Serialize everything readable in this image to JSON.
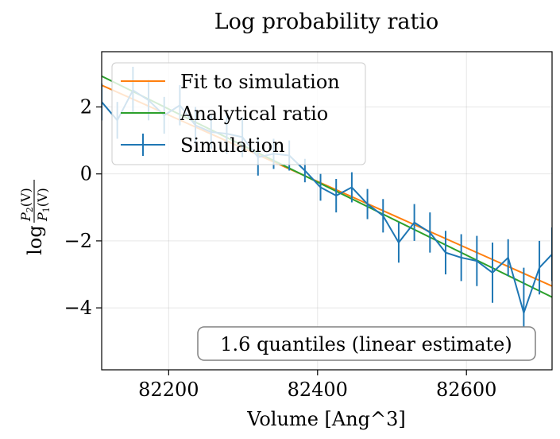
{
  "chart_data": {
    "type": "line",
    "title": "Log probability ratio",
    "xlabel": "Volume [Ang^3]",
    "ylabel_main": "log",
    "ylabel_num": "P",
    "ylabel_num_sub": "2",
    "ylabel_den": "P",
    "ylabel_den_sub": "1",
    "ylabel_arg": "(V)",
    "xlim": [
      82110,
      82715
    ],
    "ylim": [
      -5.85,
      3.65
    ],
    "x_ticks": [
      82200,
      82400,
      82600
    ],
    "x_tick_labels": [
      "82200",
      "82400",
      "82600"
    ],
    "y_ticks": [
      2,
      0,
      -2,
      -4
    ],
    "y_tick_labels": [
      "2",
      "0",
      "−2",
      "−4"
    ],
    "grid": true,
    "legend_position": "top-left",
    "annotation": "1.6 quantiles (linear estimate)",
    "series": [
      {
        "name": "Fit to simulation",
        "kind": "line",
        "color": "#ff7f0e",
        "x": [
          82110,
          82715
        ],
        "y": [
          2.65,
          -3.35
        ]
      },
      {
        "name": "Analytical ratio",
        "kind": "line",
        "color": "#2ca02c",
        "x": [
          82110,
          82715
        ],
        "y": [
          2.92,
          -3.68
        ]
      },
      {
        "name": "Simulation",
        "kind": "errorbar",
        "color": "#1f77b4",
        "x": [
          82110,
          82131,
          82152,
          82173,
          82194,
          82215,
          82236,
          82257,
          82278,
          82299,
          82320,
          82341,
          82362,
          82383,
          82404,
          82425,
          82446,
          82467,
          82488,
          82509,
          82530,
          82551,
          82572,
          82593,
          82614,
          82635,
          82656,
          82677,
          82698,
          82715
        ],
        "y": [
          2.15,
          1.6,
          2.5,
          2.2,
          1.75,
          2.05,
          1.45,
          1.25,
          1.2,
          1.1,
          0.5,
          0.6,
          0.55,
          0.1,
          -0.4,
          -0.65,
          -0.4,
          -0.9,
          -1.25,
          -2.05,
          -1.45,
          -1.75,
          -2.35,
          -2.5,
          -2.6,
          -2.95,
          -2.5,
          -4.15,
          -2.8,
          -2.4
        ],
        "yerr": [
          0.55,
          0.55,
          0.7,
          0.6,
          0.55,
          0.6,
          0.55,
          0.5,
          0.6,
          0.6,
          0.55,
          0.45,
          0.45,
          0.35,
          0.4,
          0.5,
          0.45,
          0.45,
          0.5,
          0.6,
          0.55,
          0.6,
          0.65,
          0.7,
          0.75,
          0.9,
          0.55,
          1.35,
          0.8,
          0.8
        ]
      }
    ]
  }
}
